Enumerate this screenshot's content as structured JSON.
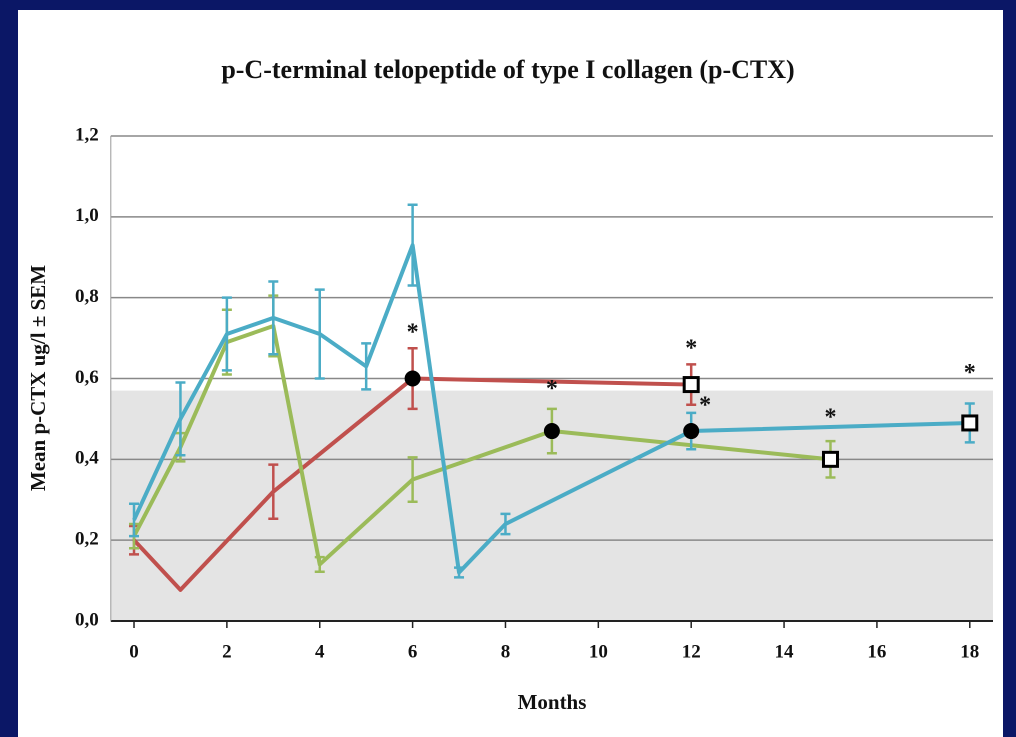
{
  "chart_data": {
    "type": "line",
    "title": "p-C-terminal telopeptide of type I collagen (p-CTX)",
    "xlabel": "Months",
    "ylabel": "Mean  p-CTX ug/l ±  SEM",
    "xlim": [
      -0.5,
      18.5
    ],
    "xticks": [
      0,
      2,
      4,
      6,
      8,
      10,
      12,
      14,
      16,
      18
    ],
    "ylim": [
      0,
      1.2
    ],
    "yticks": [
      {
        "value": 0,
        "label": "0,0"
      },
      {
        "value": 0.2,
        "label": "0,2"
      },
      {
        "value": 0.4,
        "label": "0,4"
      },
      {
        "value": 0.6,
        "label": "0,6"
      },
      {
        "value": 0.8,
        "label": "0,8"
      },
      {
        "value": 1.0,
        "label": "1,0"
      },
      {
        "value": 1.2,
        "label": "1,2"
      }
    ],
    "grid": true,
    "reference_band": [
      0,
      0.57
    ],
    "series": [
      {
        "color": "#c0504d",
        "x": [
          0,
          1,
          3,
          6,
          12
        ],
        "values": [
          0.2,
          0.077,
          0.32,
          0.6,
          0.585
        ],
        "errors": [
          0.035,
          0,
          0.067,
          0.075,
          0.05
        ],
        "markers": [
          null,
          null,
          null,
          "circle",
          "square"
        ]
      },
      {
        "color": "#9bbb59",
        "x": [
          0,
          1,
          2,
          3,
          4,
          6,
          9,
          15
        ],
        "values": [
          0.21,
          0.43,
          0.69,
          0.73,
          0.14,
          0.35,
          0.47,
          0.4
        ],
        "errors": [
          0.03,
          0.035,
          0.08,
          0.075,
          0.018,
          0.055,
          0.055,
          0.045
        ],
        "markers": [
          null,
          null,
          null,
          null,
          null,
          null,
          "circle",
          "square"
        ]
      },
      {
        "color": "#4bacc6",
        "x": [
          0,
          1,
          2,
          3,
          4,
          5,
          6,
          7,
          8,
          12,
          18
        ],
        "values": [
          0.25,
          0.5,
          0.71,
          0.75,
          0.71,
          0.63,
          0.93,
          0.12,
          0.24,
          0.47,
          0.49
        ],
        "errors": [
          0.04,
          0.09,
          0.09,
          0.09,
          0.11,
          0.057,
          0.1,
          0.012,
          0.025,
          0.045,
          0.048
        ],
        "markers": [
          null,
          null,
          null,
          null,
          null,
          null,
          null,
          null,
          null,
          "circle",
          "square"
        ]
      }
    ],
    "annotations": [
      {
        "text": "*",
        "x": 6,
        "y": 0.71
      },
      {
        "text": "*",
        "x": 9,
        "y": 0.57
      },
      {
        "text": "*",
        "x": 12,
        "y": 0.67
      },
      {
        "text": "*",
        "x": 12.3,
        "y": 0.53
      },
      {
        "text": "*",
        "x": 15,
        "y": 0.5
      },
      {
        "text": "*",
        "x": 18,
        "y": 0.61
      }
    ]
  }
}
